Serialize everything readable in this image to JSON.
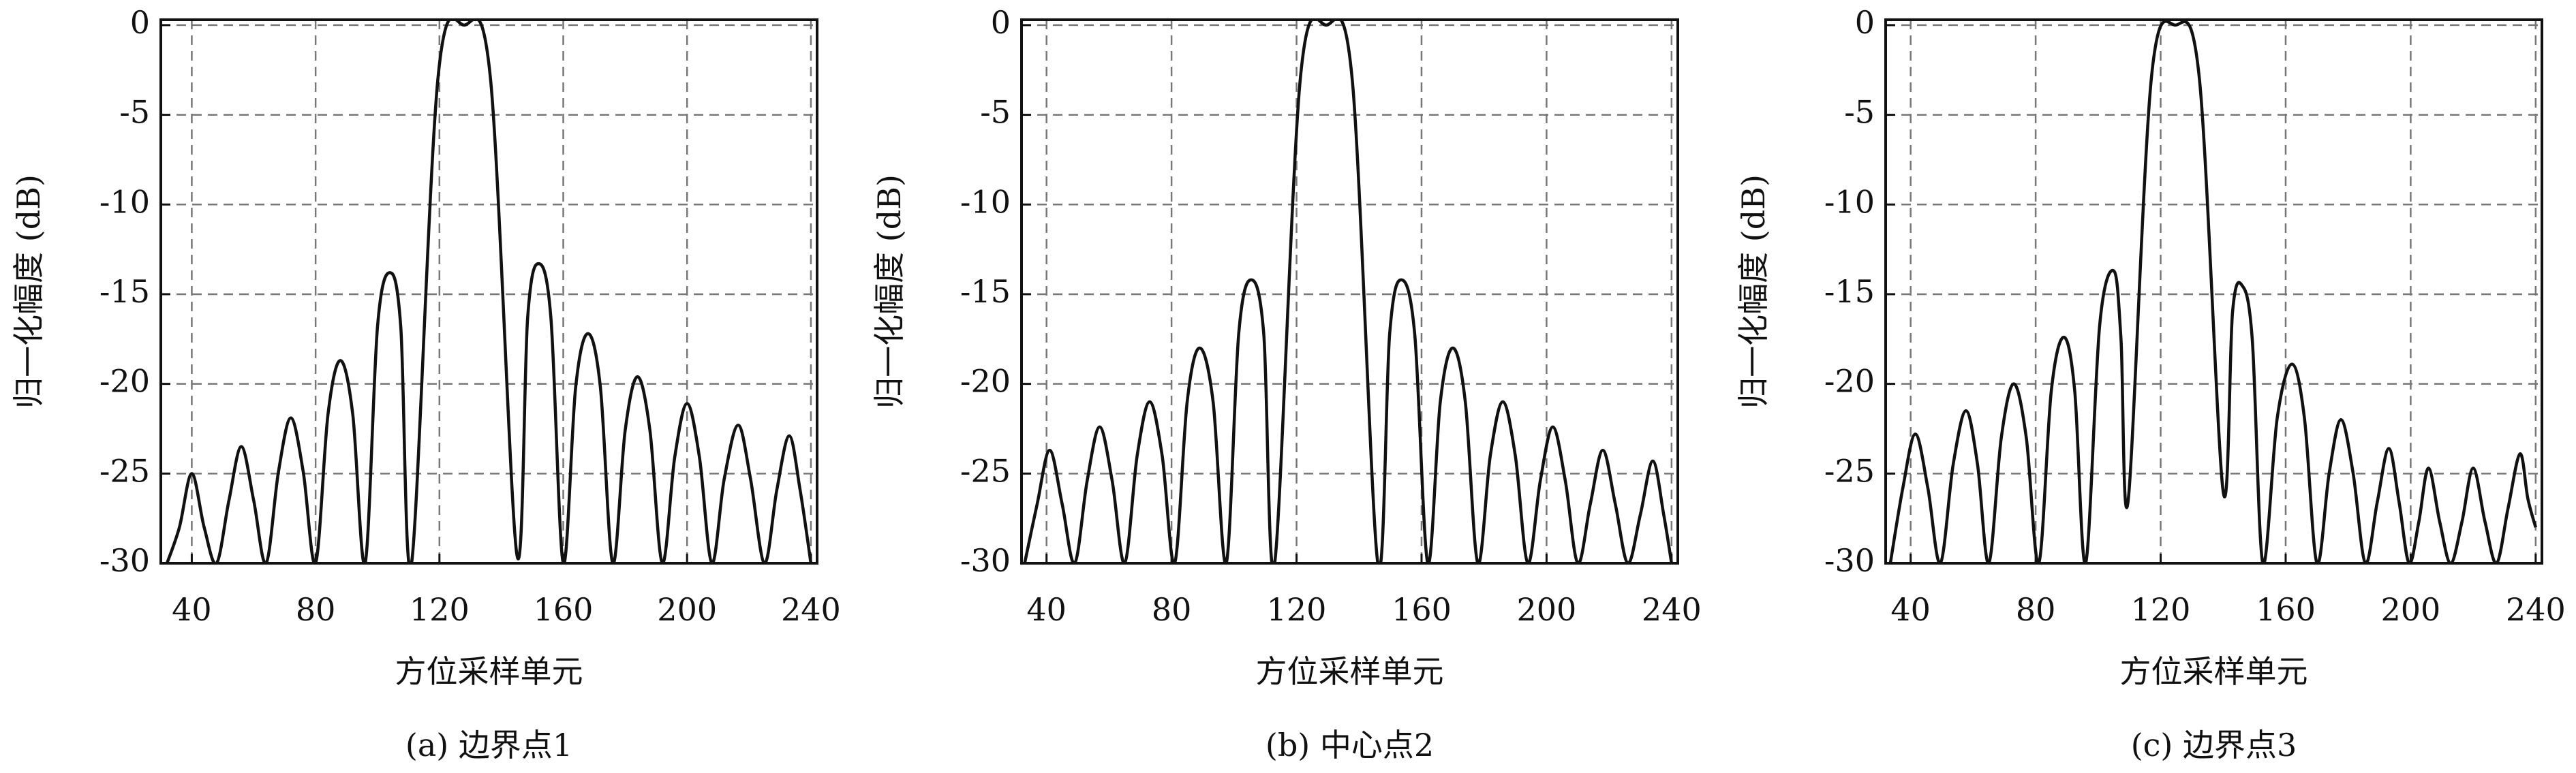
{
  "chart_data": [
    {
      "type": "line",
      "caption": "(a) 边界点1",
      "xlabel": "方位采样单元",
      "ylabel": "归一化幅度 (dB)",
      "xlim": [
        30,
        242
      ],
      "ylim": [
        -30,
        0.3
      ],
      "xticks": [
        40,
        80,
        120,
        160,
        200,
        240
      ],
      "yticks": [
        -30,
        -25,
        -20,
        -15,
        -10,
        -5,
        0
      ],
      "grid": true,
      "color": "#111111",
      "x": [
        32,
        36,
        40,
        44,
        48,
        52,
        56,
        60,
        64,
        68,
        72,
        76,
        80,
        84,
        88,
        92,
        96,
        100,
        104,
        107.5,
        111,
        119.5,
        128,
        136.5,
        145,
        148.5,
        152,
        156,
        160,
        164,
        168,
        172,
        176,
        180,
        184,
        188,
        192,
        196,
        200,
        204,
        208,
        212,
        216.5,
        220.5,
        225,
        229,
        233,
        236.5,
        240
      ],
      "values": [
        -30,
        -28,
        -25,
        -28,
        -30,
        -26.5,
        -23.5,
        -26.5,
        -30,
        -24.9,
        -21.9,
        -24.9,
        -30,
        -21.7,
        -18.7,
        -21.7,
        -30,
        -16.8,
        -13.8,
        -16.8,
        -30,
        -3,
        0,
        -3,
        -29.5,
        -16.3,
        -13.3,
        -16.3,
        -30,
        -20.2,
        -17.2,
        -20.2,
        -30,
        -22.6,
        -19.6,
        -22.6,
        -30,
        -24.1,
        -21.1,
        -24.1,
        -30,
        -25.3,
        -22.3,
        -25.3,
        -30,
        -25.9,
        -22.9,
        -25.9,
        -30
      ]
    },
    {
      "type": "line",
      "caption": "(b) 中心点2",
      "xlabel": "方位采样单元",
      "ylabel": "归一化幅度 (dB)",
      "xlim": [
        32,
        242
      ],
      "ylim": [
        -30,
        0.3
      ],
      "xticks": [
        40,
        80,
        120,
        160,
        200,
        240
      ],
      "yticks": [
        -30,
        -25,
        -20,
        -15,
        -10,
        -5,
        0
      ],
      "grid": true,
      "color": "#111111",
      "x": [
        33,
        37,
        41,
        45,
        49,
        53,
        57,
        61,
        65,
        69,
        73,
        77,
        81,
        85,
        89,
        93.3,
        97.5,
        101.5,
        105.5,
        109.5,
        113,
        121.2,
        129.5,
        137.8,
        146,
        149.8,
        153.5,
        157.8,
        162,
        166,
        170,
        174,
        178,
        182,
        186,
        190,
        194,
        198,
        202,
        206,
        210,
        214,
        218,
        222,
        226,
        230,
        234,
        237.5,
        240
      ],
      "values": [
        -30,
        -26.7,
        -23.7,
        -26.7,
        -30,
        -25.4,
        -22.4,
        -25.4,
        -30,
        -24,
        -21,
        -24,
        -30,
        -21,
        -18,
        -21,
        -30,
        -17.2,
        -14.2,
        -17.2,
        -30,
        -3,
        0,
        -3,
        -30,
        -17.2,
        -14.2,
        -17.2,
        -30,
        -21,
        -18,
        -21,
        -30,
        -24,
        -21,
        -24,
        -30,
        -25.4,
        -22.4,
        -25.4,
        -30,
        -26.7,
        -23.7,
        -26.7,
        -30,
        -27.3,
        -24.3,
        -27.3,
        -30
      ]
    },
    {
      "type": "line",
      "caption": "(c) 边界点3",
      "xlabel": "方位采样单元",
      "ylabel": "归一化幅度 (dB)",
      "xlim": [
        32,
        242
      ],
      "ylim": [
        -30,
        0.3
      ],
      "xticks": [
        40,
        80,
        120,
        160,
        200,
        240
      ],
      "yticks": [
        -30,
        -25,
        -20,
        -15,
        -10,
        -5,
        0
      ],
      "grid": true,
      "color": "#111111",
      "x": [
        33.5,
        37.5,
        41.5,
        45.5,
        49.5,
        53.6,
        57.7,
        61.4,
        65,
        69,
        73,
        77,
        81,
        85,
        89,
        92.5,
        96,
        100.5,
        105,
        107.3,
        109.6,
        117,
        124.7,
        132.4,
        140,
        143,
        146,
        149.3,
        152.7,
        157.3,
        162,
        166,
        170,
        173.9,
        177.7,
        181.6,
        185.5,
        189.3,
        193,
        196.3,
        199.5,
        202.6,
        205.7,
        209.3,
        212.8,
        216.4,
        220,
        223.8,
        227.5,
        231.2,
        235,
        237.5,
        240
      ],
      "values": [
        -30,
        -25.8,
        -22.8,
        -25.8,
        -30,
        -24.5,
        -21.5,
        -24.5,
        -30,
        -23,
        -20,
        -23,
        -30,
        -20.4,
        -17.4,
        -20.4,
        -30,
        -16.7,
        -13.7,
        -17.5,
        -26.5,
        -3,
        0,
        -3,
        -26,
        -16,
        -14.5,
        -17.5,
        -30,
        -21.9,
        -18.9,
        -21.9,
        -30,
        -25,
        -22,
        -25,
        -30,
        -26.6,
        -23.6,
        -26.6,
        -30,
        -27.7,
        -24.7,
        -27.7,
        -30,
        -27.7,
        -24.7,
        -27.7,
        -30,
        -26.9,
        -23.9,
        -26.4,
        -28
      ]
    }
  ]
}
